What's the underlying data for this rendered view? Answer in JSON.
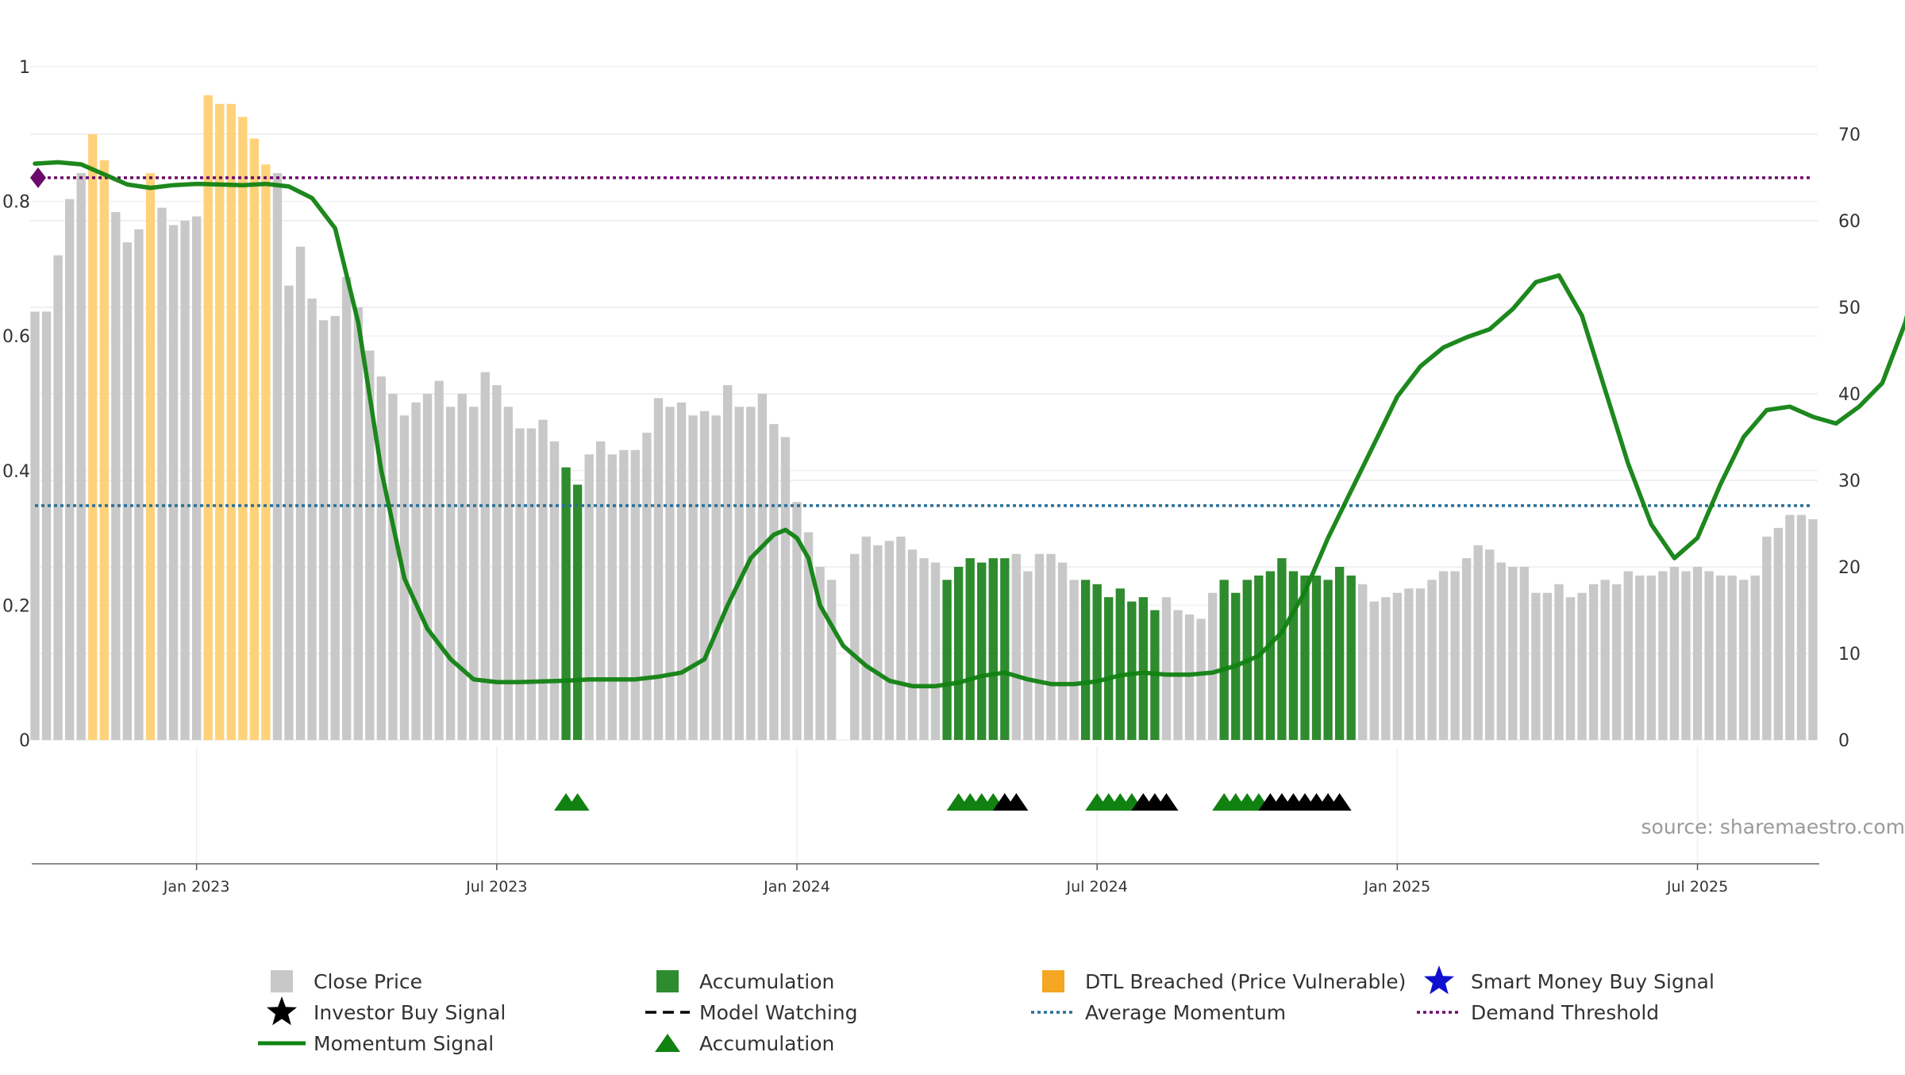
{
  "source_text": "source: sharemaestro.com",
  "colors": {
    "close": "#c8c8c8",
    "accumulation": "#2e8b2e",
    "dtl": "#ffd27a",
    "momentum": "#118211",
    "avg_momentum": "#2a6f97",
    "demand": "#6b0a6b",
    "marker_green": "#118211",
    "marker_black": "#000000",
    "smart_money": "#1010d0"
  },
  "legend": [
    {
      "key": "close",
      "label": "Close Price",
      "icon": "gray-square"
    },
    {
      "key": "accumulation_bar",
      "label": "Accumulation",
      "icon": "green-square"
    },
    {
      "key": "dtl",
      "label": "DTL Breached (Price Vulnerable)",
      "icon": "orange-square"
    },
    {
      "key": "smart_money",
      "label": "Smart Money Buy Signal",
      "icon": "blue-star"
    },
    {
      "key": "investor_buy",
      "label": "Investor Buy Signal",
      "icon": "black-star"
    },
    {
      "key": "model_watching",
      "label": "Model Watching",
      "icon": "black-dashed-line"
    },
    {
      "key": "avg_momentum",
      "label": "Average Momentum",
      "icon": "blue-dotted-line"
    },
    {
      "key": "demand",
      "label": "Demand Threshold",
      "icon": "purple-dotted-line"
    },
    {
      "key": "momentum",
      "label": "Momentum Signal",
      "icon": "green-line"
    },
    {
      "key": "accumulation_marker",
      "label": "Accumulation",
      "icon": "green-triangle"
    }
  ],
  "chart_data": {
    "type": "bar",
    "title": "",
    "xlabel": "",
    "ylabel": "",
    "x_ticks": [
      "Jan 2023",
      "Jul 2023",
      "Jan 2024",
      "Jul 2024",
      "Jan 2025",
      "Jul 2025"
    ],
    "x_tick_weeks": [
      14,
      40,
      66,
      92,
      118,
      144
    ],
    "left_axis": {
      "range": [
        0,
        1
      ],
      "ticks": [
        "0",
        "0.2",
        "0.4",
        "0.6",
        "0.8",
        "1"
      ]
    },
    "right_axis": {
      "range": [
        0,
        70
      ],
      "ticks": [
        "0",
        "10",
        "20",
        "30",
        "40",
        "50",
        "60",
        "70"
      ]
    },
    "grid": true,
    "first_week": "2022-10-09",
    "bar_values": [
      49.5,
      49.5,
      56,
      62.5,
      65.5,
      70,
      67,
      61,
      57.5,
      59,
      65.5,
      61.5,
      59.5,
      60,
      60.5,
      74.5,
      73.5,
      73.5,
      72,
      69.5,
      66.5,
      65.5,
      52.5,
      57,
      51,
      48.5,
      49,
      53.5,
      50,
      45,
      42,
      40,
      37.5,
      39,
      40,
      41.5,
      38.5,
      40,
      38.5,
      42.5,
      41,
      38.5,
      36,
      36,
      37,
      34.5,
      31.5,
      29.5,
      33,
      34.5,
      33,
      33.5,
      33.5,
      35.5,
      39.5,
      38.5,
      39,
      37.5,
      38,
      37.5,
      41,
      38.5,
      38.5,
      40,
      36.5,
      35,
      27.5,
      24,
      20,
      18.5,
      null,
      21.5,
      23.5,
      22.5,
      23,
      23.5,
      22,
      21,
      20.5,
      18.5,
      20,
      21,
      20.5,
      21,
      21,
      21.5,
      19.5,
      21.5,
      21.5,
      20.5,
      18.5,
      18.5,
      18,
      16.5,
      17.5,
      16,
      16.5,
      15,
      16.5,
      15,
      14.5,
      14,
      17,
      18.5,
      17,
      18.5,
      19,
      19.5,
      21,
      19.5,
      19,
      19,
      18.5,
      20,
      19,
      18,
      16,
      16.5,
      17,
      17.5,
      17.5,
      18.5,
      19.5,
      19.5,
      21,
      22.5,
      22,
      20.5,
      20,
      20,
      17,
      17,
      18,
      16.5,
      17,
      18,
      18.5,
      18,
      19.5,
      19,
      19,
      19.5,
      20,
      19.5,
      20,
      19.5,
      19,
      19,
      18.5,
      19,
      23.5,
      24.5,
      26,
      26,
      25.5
    ],
    "bar_types": [
      "C",
      "C",
      "C",
      "C",
      "C",
      "D",
      "D",
      "C",
      "C",
      "C",
      "D",
      "C",
      "C",
      "C",
      "C",
      "D",
      "D",
      "D",
      "D",
      "D",
      "D",
      "C",
      "C",
      "C",
      "C",
      "C",
      "C",
      "C",
      "C",
      "C",
      "C",
      "C",
      "C",
      "C",
      "C",
      "C",
      "C",
      "C",
      "C",
      "C",
      "C",
      "C",
      "C",
      "C",
      "C",
      "C",
      "A",
      "A",
      "C",
      "C",
      "C",
      "C",
      "C",
      "C",
      "C",
      "C",
      "C",
      "C",
      "C",
      "C",
      "C",
      "C",
      "C",
      "C",
      "C",
      "C",
      "C",
      "C",
      "C",
      "C",
      "C",
      "C",
      "C",
      "C",
      "C",
      "C",
      "C",
      "C",
      "C",
      "A",
      "A",
      "A",
      "A",
      "A",
      "A",
      "C",
      "C",
      "C",
      "C",
      "C",
      "C",
      "A",
      "A",
      "A",
      "A",
      "A",
      "A",
      "A",
      "C",
      "C",
      "C",
      "C",
      "C",
      "A",
      "A",
      "A",
      "A",
      "A",
      "A",
      "A",
      "A",
      "A",
      "A",
      "A",
      "A",
      "C",
      "C",
      "C",
      "C",
      "C",
      "C",
      "C",
      "C",
      "C",
      "C",
      "C",
      "C",
      "C",
      "C",
      "C",
      "C",
      "C",
      "C",
      "C",
      "C",
      "C",
      "C",
      "C",
      "C",
      "C",
      "C",
      "C",
      "C",
      "C",
      "C",
      "C",
      "C",
      "C",
      "C",
      "C",
      "C",
      "C",
      "C",
      "C",
      "C",
      "C",
      "C",
      "C"
    ],
    "series": [
      {
        "name": "Momentum Signal",
        "type": "line",
        "axis": "left",
        "points": [
          [
            0,
            0.856
          ],
          [
            2,
            0.858
          ],
          [
            4,
            0.855
          ],
          [
            6,
            0.84
          ],
          [
            8,
            0.825
          ],
          [
            10,
            0.82
          ],
          [
            12,
            0.824
          ],
          [
            14,
            0.826
          ],
          [
            16,
            0.825
          ],
          [
            18,
            0.824
          ],
          [
            20,
            0.826
          ],
          [
            22,
            0.822
          ],
          [
            24,
            0.805
          ],
          [
            26,
            0.76
          ],
          [
            28,
            0.62
          ],
          [
            30,
            0.4
          ],
          [
            32,
            0.24
          ],
          [
            34,
            0.165
          ],
          [
            36,
            0.12
          ],
          [
            38,
            0.09
          ],
          [
            40,
            0.086
          ],
          [
            42,
            0.086
          ],
          [
            44,
            0.087
          ],
          [
            46,
            0.088
          ],
          [
            48,
            0.09
          ],
          [
            50,
            0.09
          ],
          [
            52,
            0.09
          ],
          [
            54,
            0.094
          ],
          [
            56,
            0.1
          ],
          [
            58,
            0.12
          ],
          [
            60,
            0.2
          ],
          [
            62,
            0.27
          ],
          [
            64,
            0.305
          ],
          [
            65,
            0.312
          ],
          [
            66,
            0.3
          ],
          [
            67,
            0.27
          ],
          [
            68,
            0.2
          ],
          [
            70,
            0.14
          ],
          [
            72,
            0.11
          ],
          [
            74,
            0.088
          ],
          [
            76,
            0.08
          ],
          [
            78,
            0.08
          ],
          [
            80,
            0.085
          ],
          [
            82,
            0.095
          ],
          [
            84,
            0.1
          ],
          [
            86,
            0.09
          ],
          [
            88,
            0.083
          ],
          [
            90,
            0.083
          ],
          [
            92,
            0.087
          ],
          [
            94,
            0.096
          ],
          [
            96,
            0.1
          ],
          [
            98,
            0.097
          ],
          [
            100,
            0.097
          ],
          [
            102,
            0.1
          ],
          [
            104,
            0.11
          ],
          [
            106,
            0.125
          ],
          [
            108,
            0.16
          ],
          [
            110,
            0.22
          ],
          [
            112,
            0.3
          ],
          [
            114,
            0.37
          ],
          [
            116,
            0.44
          ],
          [
            118,
            0.51
          ],
          [
            120,
            0.555
          ],
          [
            122,
            0.583
          ],
          [
            124,
            0.598
          ],
          [
            126,
            0.61
          ],
          [
            128,
            0.64
          ],
          [
            130,
            0.68
          ],
          [
            132,
            0.69
          ],
          [
            134,
            0.63
          ],
          [
            136,
            0.52
          ],
          [
            138,
            0.41
          ],
          [
            140,
            0.32
          ],
          [
            142,
            0.27
          ],
          [
            144,
            0.3
          ],
          [
            146,
            0.38
          ],
          [
            148,
            0.45
          ],
          [
            150,
            0.49
          ],
          [
            152,
            0.495
          ],
          [
            154,
            0.48
          ],
          [
            156,
            0.47
          ],
          [
            158,
            0.495
          ],
          [
            160,
            0.53
          ],
          [
            162,
            0.62
          ],
          [
            164,
            0.76
          ]
        ]
      },
      {
        "name": "Average Momentum",
        "type": "hline",
        "axis": "left",
        "value": 0.348
      },
      {
        "name": "Demand Threshold",
        "type": "hline",
        "axis": "left",
        "value": 0.835
      }
    ],
    "accumulation_markers": [
      [
        46,
        "green"
      ],
      [
        47,
        "green"
      ],
      [
        80,
        "green"
      ],
      [
        81,
        "green"
      ],
      [
        82,
        "green"
      ],
      [
        83,
        "green"
      ],
      [
        84,
        "black"
      ],
      [
        85,
        "black"
      ],
      [
        92,
        "green"
      ],
      [
        93,
        "green"
      ],
      [
        94,
        "green"
      ],
      [
        95,
        "green"
      ],
      [
        96,
        "black"
      ],
      [
        97,
        "black"
      ],
      [
        98,
        "black"
      ],
      [
        103,
        "green"
      ],
      [
        104,
        "green"
      ],
      [
        105,
        "green"
      ],
      [
        106,
        "green"
      ],
      [
        107,
        "black"
      ],
      [
        108,
        "black"
      ],
      [
        109,
        "black"
      ],
      [
        110,
        "black"
      ],
      [
        111,
        "black"
      ],
      [
        112,
        "black"
      ],
      [
        113,
        "black"
      ]
    ],
    "demand_marker_week": 0,
    "legend_position": "bottom"
  }
}
